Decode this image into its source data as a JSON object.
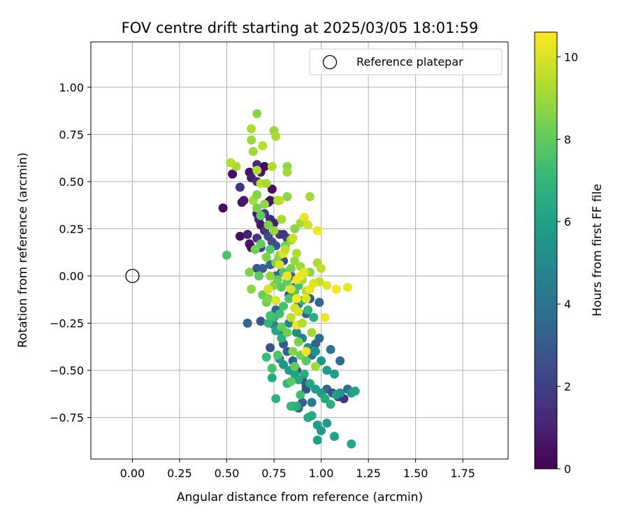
{
  "chart_data": {
    "type": "scatter",
    "title": "FOV centre drift starting at 2025/03/05 18:01:59",
    "xlabel": "Angular distance from reference (arcmin)",
    "ylabel": "Rotation from reference (arcmin)",
    "xlim": [
      -0.22,
      1.99
    ],
    "ylim": [
      -0.97,
      1.24
    ],
    "xticks": [
      0.0,
      0.25,
      0.5,
      0.75,
      1.0,
      1.25,
      1.5,
      1.75
    ],
    "xtick_labels": [
      "0.00",
      "0.25",
      "0.50",
      "0.75",
      "1.00",
      "1.25",
      "1.50",
      "1.75"
    ],
    "yticks": [
      -0.75,
      -0.5,
      -0.25,
      0.0,
      0.25,
      0.5,
      0.75,
      1.0
    ],
    "ytick_labels": [
      "−0.75",
      "−0.50",
      "−0.25",
      "0.00",
      "0.25",
      "0.50",
      "0.75",
      "1.00"
    ],
    "grid": true,
    "legend": {
      "position": "top-right",
      "entries": [
        "Reference platepar"
      ]
    },
    "reference_point": {
      "x": 0.0,
      "y": 0.0
    },
    "colorbar": {
      "label": "Hours from first FF file",
      "colormap": "viridis",
      "range": [
        0,
        10.6
      ],
      "ticks": [
        0,
        2,
        4,
        6,
        8,
        10
      ],
      "tick_labels": [
        "0",
        "2",
        "4",
        "6",
        "8",
        "10"
      ]
    },
    "colormap_stops": [
      "#440154",
      "#482878",
      "#3e4989",
      "#31688e",
      "#26828e",
      "#1f9e89",
      "#35b779",
      "#6ece58",
      "#b5de2b",
      "#fde725"
    ],
    "series": [
      {
        "points": [
          [
            0.48,
            0.36,
            0.3
          ],
          [
            0.53,
            0.54,
            0.4
          ],
          [
            0.57,
            0.47,
            1.5
          ],
          [
            0.58,
            0.39,
            0.6
          ],
          [
            0.59,
            0.4,
            0.8
          ],
          [
            0.57,
            0.21,
            0.4
          ],
          [
            0.61,
            0.22,
            1.0
          ],
          [
            0.62,
            0.55,
            0.5
          ],
          [
            0.63,
            0.52,
            0.9
          ],
          [
            0.66,
            0.59,
            1.2
          ],
          [
            0.66,
            0.5,
            1.4
          ],
          [
            0.68,
            0.55,
            0.7
          ],
          [
            0.7,
            0.58,
            0.2
          ],
          [
            0.72,
            0.39,
            1.1
          ],
          [
            0.73,
            0.4,
            0.5
          ],
          [
            0.74,
            0.46,
            0.3
          ],
          [
            0.66,
            0.33,
            0.8
          ],
          [
            0.67,
            0.3,
            1.2
          ],
          [
            0.68,
            0.27,
            0.6
          ],
          [
            0.7,
            0.24,
            1.6
          ],
          [
            0.66,
            0.2,
            1.5
          ],
          [
            0.68,
            0.15,
            2.2
          ],
          [
            0.62,
            0.17,
            0.6
          ],
          [
            0.63,
            0.15,
            0.4
          ],
          [
            0.7,
            0.33,
            1.8
          ],
          [
            0.73,
            0.3,
            1.3
          ],
          [
            0.75,
            0.28,
            1.0
          ],
          [
            0.78,
            0.22,
            1.9
          ],
          [
            0.8,
            0.22,
            1.6
          ],
          [
            0.82,
            0.2,
            2.0
          ],
          [
            0.72,
            0.21,
            2.4
          ],
          [
            0.74,
            0.18,
            2.6
          ],
          [
            0.76,
            0.16,
            2.8
          ],
          [
            0.78,
            0.1,
            3.0
          ],
          [
            0.8,
            0.08,
            2.4
          ],
          [
            0.66,
            0.04,
            2.9
          ],
          [
            0.69,
            0.04,
            3.3
          ],
          [
            0.73,
            0.06,
            3.5
          ],
          [
            0.76,
            0.0,
            3.7
          ],
          [
            0.79,
            0.02,
            3.1
          ],
          [
            0.84,
            0.0,
            3.2
          ],
          [
            0.61,
            -0.25,
            3.4
          ],
          [
            0.68,
            -0.24,
            2.8
          ],
          [
            0.76,
            -0.18,
            3.6
          ],
          [
            0.83,
            -0.1,
            2.5
          ],
          [
            0.86,
            -0.06,
            2.7
          ],
          [
            0.88,
            -0.15,
            3.8
          ],
          [
            0.92,
            -0.2,
            3.3
          ],
          [
            0.94,
            -0.12,
            2.9
          ],
          [
            0.99,
            -0.14,
            3.5
          ],
          [
            0.73,
            -0.38,
            2.6
          ],
          [
            0.8,
            -0.36,
            2.9
          ],
          [
            0.82,
            -0.4,
            3.2
          ],
          [
            0.85,
            -0.45,
            3.4
          ],
          [
            0.87,
            -0.5,
            2.2
          ],
          [
            0.9,
            -0.55,
            2.6
          ],
          [
            0.92,
            -0.58,
            3.0
          ],
          [
            0.95,
            -0.42,
            3.9
          ],
          [
            0.97,
            -0.36,
            3.3
          ],
          [
            0.99,
            -0.33,
            3.6
          ],
          [
            1.05,
            -0.39,
            4.1
          ],
          [
            1.1,
            -0.45,
            3.7
          ],
          [
            1.03,
            -0.6,
            3.4
          ],
          [
            1.06,
            -0.62,
            2.5
          ],
          [
            1.09,
            -0.64,
            2.1
          ],
          [
            1.12,
            -0.65,
            1.8
          ],
          [
            1.14,
            -0.6,
            3.8
          ],
          [
            0.85,
            -0.69,
            3.9
          ],
          [
            0.88,
            -0.7,
            3.6
          ],
          [
            0.9,
            -0.67,
            3.2
          ],
          [
            0.92,
            -0.6,
            2.7
          ],
          [
            0.95,
            -0.67,
            4.3
          ],
          [
            0.75,
            -0.26,
            4.4
          ],
          [
            0.79,
            -0.3,
            4.7
          ],
          [
            0.83,
            -0.25,
            4.9
          ],
          [
            0.87,
            -0.3,
            5.1
          ],
          [
            0.9,
            -0.33,
            4.6
          ],
          [
            0.93,
            -0.38,
            5.0
          ],
          [
            0.97,
            -0.4,
            5.3
          ],
          [
            1.0,
            -0.45,
            5.5
          ],
          [
            1.03,
            -0.5,
            5.7
          ],
          [
            1.07,
            -0.52,
            5.9
          ],
          [
            0.78,
            -0.44,
            5.2
          ],
          [
            0.8,
            -0.47,
            5.6
          ],
          [
            0.83,
            -0.5,
            5.9
          ],
          [
            0.86,
            -0.52,
            6.1
          ],
          [
            0.88,
            -0.55,
            6.3
          ],
          [
            0.91,
            -0.52,
            6.5
          ],
          [
            0.94,
            -0.57,
            6.2
          ],
          [
            0.97,
            -0.6,
            6.0
          ],
          [
            1.0,
            -0.62,
            5.8
          ],
          [
            1.02,
            -0.65,
            6.4
          ],
          [
            1.05,
            -0.68,
            6.6
          ],
          [
            1.08,
            -0.63,
            6.0
          ],
          [
            1.1,
            -0.62,
            5.5
          ],
          [
            1.16,
            -0.62,
            5.9
          ],
          [
            1.18,
            -0.61,
            6.2
          ],
          [
            0.74,
            -0.54,
            6.4
          ],
          [
            0.76,
            -0.65,
            6.8
          ],
          [
            0.82,
            -0.57,
            7.0
          ],
          [
            0.84,
            -0.69,
            7.1
          ],
          [
            0.87,
            -0.69,
            6.7
          ],
          [
            0.93,
            -0.75,
            6.5
          ],
          [
            0.95,
            -0.74,
            6.3
          ],
          [
            0.98,
            -0.79,
            5.9
          ],
          [
            1.0,
            -0.82,
            5.6
          ],
          [
            1.03,
            -0.78,
            5.7
          ],
          [
            0.98,
            -0.87,
            6.0
          ],
          [
            1.07,
            -0.85,
            6.1
          ],
          [
            1.16,
            -0.89,
            6.3
          ],
          [
            0.72,
            -0.25,
            6.9
          ],
          [
            0.75,
            -0.22,
            7.1
          ],
          [
            0.78,
            -0.2,
            7.3
          ],
          [
            0.8,
            -0.16,
            7.5
          ],
          [
            0.83,
            -0.12,
            7.6
          ],
          [
            0.86,
            -0.08,
            7.7
          ],
          [
            0.88,
            -0.05,
            7.4
          ],
          [
            0.9,
            -0.13,
            7.0
          ],
          [
            0.93,
            -0.18,
            6.8
          ],
          [
            0.96,
            -0.22,
            6.6
          ],
          [
            0.71,
            -0.43,
            7.2
          ],
          [
            0.74,
            -0.49,
            7.4
          ],
          [
            0.77,
            -0.42,
            7.6
          ],
          [
            0.84,
            -0.56,
            7.9
          ],
          [
            0.86,
            -0.48,
            8.0
          ],
          [
            0.89,
            -0.42,
            8.2
          ],
          [
            0.92,
            -0.45,
            7.8
          ],
          [
            0.89,
            -0.63,
            7.3
          ],
          [
            0.76,
            -0.29,
            6.2
          ],
          [
            0.79,
            -0.33,
            6.7
          ],
          [
            0.5,
            0.11,
            7.6
          ],
          [
            0.62,
            0.02,
            8.5
          ],
          [
            0.63,
            -0.07,
            8.8
          ],
          [
            0.67,
            0.0,
            7.9
          ],
          [
            0.69,
            -0.1,
            8.1
          ],
          [
            0.71,
            -0.14,
            8.3
          ],
          [
            0.72,
            -0.12,
            8.6
          ],
          [
            0.73,
            0.0,
            8.9
          ],
          [
            0.75,
            -0.05,
            8.7
          ],
          [
            0.77,
            -0.02,
            8.2
          ],
          [
            0.79,
            -0.06,
            7.9
          ],
          [
            0.8,
            0.02,
            7.7
          ],
          [
            0.82,
            -0.03,
            8.1
          ],
          [
            0.84,
            0.04,
            8.4
          ],
          [
            0.86,
            0.08,
            8.9
          ],
          [
            0.87,
            0.12,
            9.3
          ],
          [
            0.89,
            0.05,
            9.0
          ],
          [
            0.9,
            -0.02,
            9.2
          ],
          [
            0.92,
            -0.08,
            9.5
          ],
          [
            0.94,
            0.02,
            8.8
          ],
          [
            0.65,
            0.14,
            8.3
          ],
          [
            0.68,
            0.17,
            8.0
          ],
          [
            0.71,
            0.1,
            8.5
          ],
          [
            0.73,
            0.14,
            7.8
          ],
          [
            0.76,
            0.07,
            8.6
          ],
          [
            0.78,
            0.11,
            8.9
          ],
          [
            0.81,
            0.16,
            8.2
          ],
          [
            0.84,
            0.19,
            9.0
          ],
          [
            0.86,
            0.25,
            8.7
          ],
          [
            0.89,
            0.28,
            9.1
          ],
          [
            0.66,
            0.36,
            8.4
          ],
          [
            0.68,
            0.32,
            8.0
          ],
          [
            0.7,
            0.38,
            8.8
          ],
          [
            0.72,
            0.27,
            8.5
          ],
          [
            0.75,
            0.24,
            8.9
          ],
          [
            0.77,
            0.4,
            9.0
          ],
          [
            0.79,
            0.3,
            9.2
          ],
          [
            0.82,
            0.42,
            8.7
          ],
          [
            0.64,
            0.4,
            9.1
          ],
          [
            0.66,
            0.43,
            8.6
          ],
          [
            0.55,
            0.58,
            9.2
          ],
          [
            0.52,
            0.6,
            9.4
          ],
          [
            0.64,
            0.66,
            9.0
          ],
          [
            0.66,
            0.56,
            9.3
          ],
          [
            0.68,
            0.49,
            9.5
          ],
          [
            0.71,
            0.49,
            9.1
          ],
          [
            0.74,
            0.58,
            9.3
          ],
          [
            0.75,
            0.77,
            8.9
          ],
          [
            0.76,
            0.74,
            9.2
          ],
          [
            0.69,
            0.69,
            9.4
          ],
          [
            0.63,
            0.72,
            9.0
          ],
          [
            0.63,
            0.78,
            9.3
          ],
          [
            0.66,
            0.86,
            8.7
          ],
          [
            0.82,
            0.58,
            8.8
          ],
          [
            0.82,
            0.55,
            9.0
          ],
          [
            0.78,
            0.4,
            9.5
          ],
          [
            0.94,
            0.42,
            9.1
          ],
          [
            0.98,
            0.07,
            9.2
          ],
          [
            0.99,
            -0.03,
            9.5
          ],
          [
            1.0,
            0.04,
            9.6
          ],
          [
            0.72,
            -0.07,
            10.0
          ],
          [
            0.76,
            -0.13,
            10.1
          ],
          [
            0.8,
            0.12,
            10.2
          ],
          [
            0.82,
            0.0,
            10.3
          ],
          [
            0.84,
            -0.07,
            10.0
          ],
          [
            0.87,
            -0.02,
            10.4
          ],
          [
            0.89,
            0.0,
            10.5
          ],
          [
            0.91,
            0.02,
            10.2
          ],
          [
            0.92,
            -0.12,
            10.1
          ],
          [
            0.94,
            -0.07,
            10.3
          ],
          [
            0.96,
            -0.04,
            10.0
          ],
          [
            0.98,
            0.24,
            10.4
          ],
          [
            1.02,
            -0.22,
            10.3
          ],
          [
            1.03,
            -0.05,
            10.1
          ],
          [
            1.08,
            -0.07,
            10.4
          ],
          [
            1.14,
            -0.06,
            10.3
          ],
          [
            0.87,
            -0.26,
            10.5
          ],
          [
            0.92,
            -0.4,
            10.4
          ],
          [
            0.87,
            -0.12,
            10.5
          ],
          [
            0.91,
            0.31,
            10.2
          ],
          [
            0.93,
            0.27,
            9.8
          ],
          [
            0.85,
            0.2,
            9.7
          ],
          [
            0.81,
            0.14,
            9.6
          ],
          [
            0.78,
            0.06,
            9.9
          ],
          [
            0.86,
            -0.17,
            9.8
          ],
          [
            0.84,
            -0.22,
            9.5
          ],
          [
            0.88,
            -0.19,
            9.9
          ],
          [
            0.9,
            -0.25,
            9.3
          ],
          [
            0.95,
            -0.3,
            9.1
          ],
          [
            0.97,
            -0.48,
            9.0
          ],
          [
            0.85,
            -0.4,
            8.6
          ],
          [
            0.88,
            -0.35,
            8.4
          ],
          [
            0.82,
            -0.3,
            8.2
          ],
          [
            0.79,
            -0.27,
            8.0
          ],
          [
            0.73,
            -0.21,
            7.5
          ]
        ]
      }
    ]
  }
}
